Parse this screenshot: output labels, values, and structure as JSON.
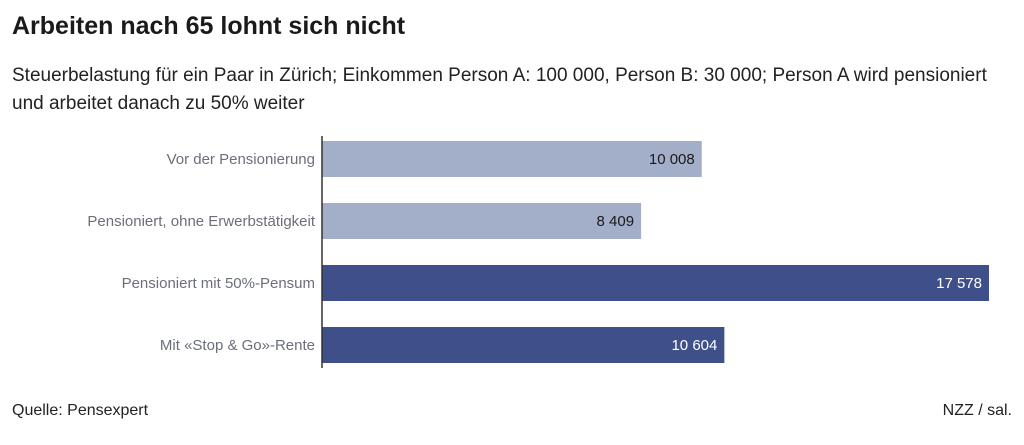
{
  "header": {
    "title": "Arbeiten nach 65 lohnt sich nicht",
    "subtitle": "Steuerbelastung für ein Paar in Zürich; Einkommen Person A: 100 000, Person B: 30 000; Person A wird pensioniert und arbeitet danach zu 50% weiter"
  },
  "footer": {
    "source": "Quelle: Pensexpert",
    "credit": "NZZ / sal."
  },
  "chart_data": {
    "type": "bar",
    "orientation": "horizontal",
    "categories": [
      "Vor der Pensionierung",
      "Pensioniert, ohne Erwerbstätigkeit",
      "Pensioniert mit 50%-Pensum",
      "Mit «Stop & Go»-Rente"
    ],
    "values": [
      10008,
      8409,
      17578,
      10604
    ],
    "value_labels": [
      "10 008",
      "8 409",
      "17 578",
      "10 604"
    ],
    "colors": [
      "#a3aec9",
      "#a3aec9",
      "#3f4f8a",
      "#3f4f8a"
    ],
    "label_colors": [
      "#1a1a1a",
      "#1a1a1a",
      "#ffffff",
      "#ffffff"
    ],
    "xlim": [
      0,
      17578
    ],
    "grid": false
  }
}
